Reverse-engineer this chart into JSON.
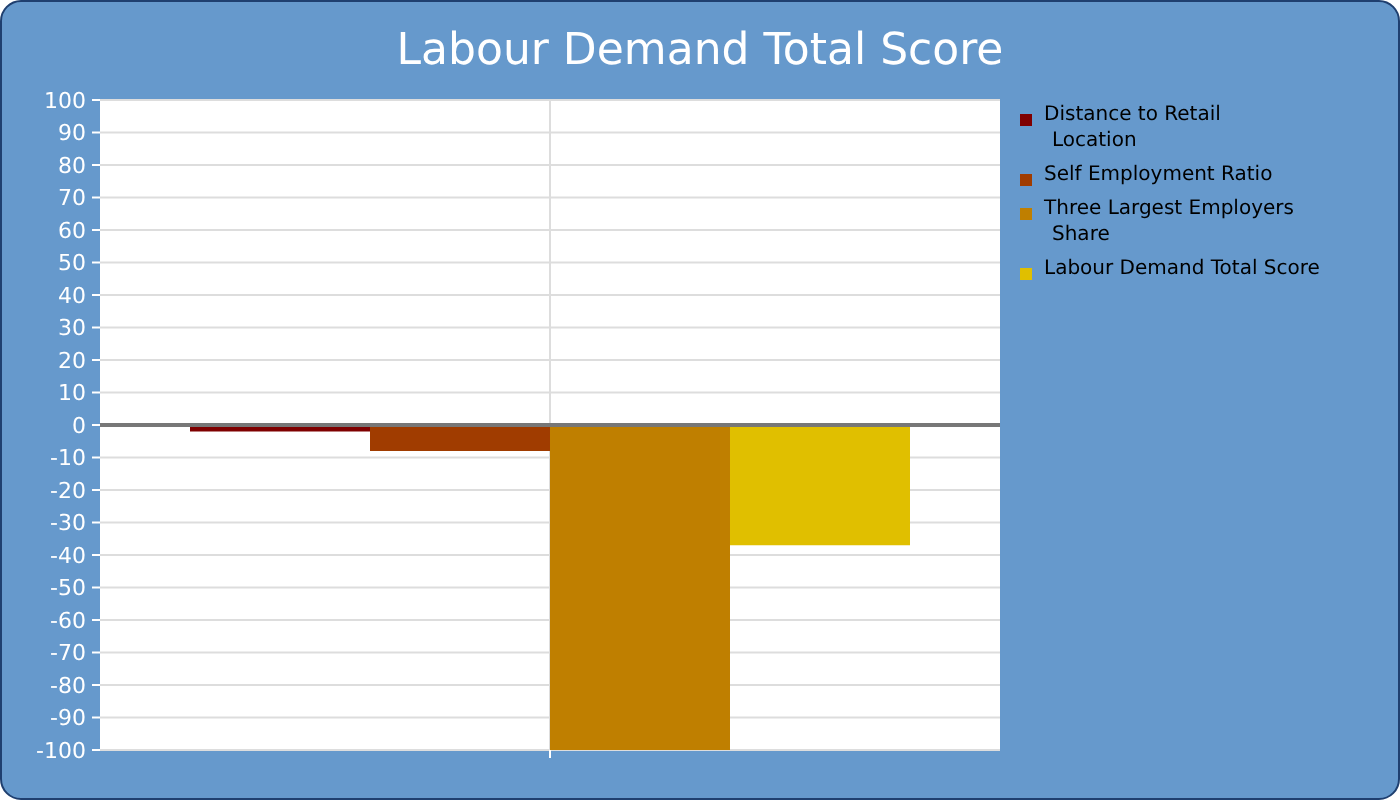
{
  "chart_data": {
    "type": "bar",
    "title": "Labour Demand Total Score",
    "categories": [
      null
    ],
    "series": [
      {
        "name": "Distance to Retail Location",
        "color": "#7f0000",
        "values": [
          -2
        ]
      },
      {
        "name": "Self Employment Ratio",
        "color": "#a03c00",
        "values": [
          -8
        ]
      },
      {
        "name": "Three Largest Employers Share",
        "color": "#bf7f00",
        "values": [
          -100
        ]
      },
      {
        "name": "Labour Demand Total Score",
        "color": "#e0bf00",
        "values": [
          -37
        ]
      }
    ],
    "ylim": [
      -100,
      100
    ],
    "yticks": [
      -100,
      -90,
      -80,
      -70,
      -60,
      -50,
      -40,
      -30,
      -20,
      -10,
      0,
      10,
      20,
      30,
      40,
      50,
      60,
      70,
      80,
      90,
      100
    ],
    "grid": true,
    "legend": "right"
  }
}
